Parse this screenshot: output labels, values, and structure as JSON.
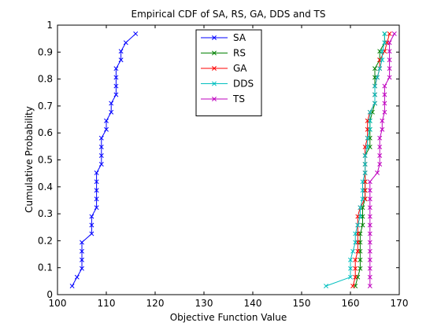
{
  "chart_data": {
    "type": "line",
    "title": "Empirical CDF of SA, RS, GA, DDS and TS",
    "xlabel": "Objective Function Value",
    "ylabel": "Cumulative Probability",
    "xlim": [
      100,
      170
    ],
    "ylim": [
      0,
      1
    ],
    "xticks": [
      "100",
      "110",
      "120",
      "130",
      "140",
      "150",
      "160",
      "170"
    ],
    "yticks": [
      "0",
      "0.1",
      "0.2",
      "0.3",
      "0.4",
      "0.5",
      "0.6",
      "0.7",
      "0.8",
      "0.9",
      "1"
    ],
    "grid": false,
    "legend_position": "top-center",
    "series": [
      {
        "name": "SA",
        "color": "#0000ff",
        "marker": "x",
        "points": [
          [
            103.0,
            0.032
          ],
          [
            104.0,
            0.065
          ],
          [
            105.0,
            0.097
          ],
          [
            105.0,
            0.129
          ],
          [
            105.0,
            0.161
          ],
          [
            105.0,
            0.194
          ],
          [
            107.0,
            0.226
          ],
          [
            107.0,
            0.258
          ],
          [
            107.0,
            0.29
          ],
          [
            108.0,
            0.323
          ],
          [
            108.0,
            0.355
          ],
          [
            108.0,
            0.387
          ],
          [
            108.0,
            0.419
          ],
          [
            108.0,
            0.452
          ],
          [
            109.0,
            0.484
          ],
          [
            109.0,
            0.516
          ],
          [
            109.0,
            0.548
          ],
          [
            109.0,
            0.581
          ],
          [
            110.0,
            0.613
          ],
          [
            110.0,
            0.645
          ],
          [
            111.0,
            0.677
          ],
          [
            111.0,
            0.71
          ],
          [
            112.0,
            0.742
          ],
          [
            112.0,
            0.774
          ],
          [
            112.0,
            0.806
          ],
          [
            112.0,
            0.839
          ],
          [
            113.0,
            0.871
          ],
          [
            113.0,
            0.903
          ],
          [
            114.0,
            0.935
          ],
          [
            116.0,
            0.968
          ]
        ]
      },
      {
        "name": "RS",
        "color": "#008000",
        "marker": "x",
        "points": [
          [
            161.0,
            0.032
          ],
          [
            161.5,
            0.065
          ],
          [
            162.0,
            0.097
          ],
          [
            162.0,
            0.129
          ],
          [
            162.0,
            0.161
          ],
          [
            162.0,
            0.194
          ],
          [
            162.0,
            0.226
          ],
          [
            162.5,
            0.258
          ],
          [
            162.5,
            0.29
          ],
          [
            162.5,
            0.323
          ],
          [
            163.0,
            0.355
          ],
          [
            163.0,
            0.387
          ],
          [
            163.0,
            0.419
          ],
          [
            163.0,
            0.452
          ],
          [
            163.0,
            0.484
          ],
          [
            163.0,
            0.516
          ],
          [
            164.0,
            0.548
          ],
          [
            164.0,
            0.581
          ],
          [
            164.0,
            0.613
          ],
          [
            164.0,
            0.645
          ],
          [
            164.5,
            0.677
          ],
          [
            165.0,
            0.71
          ],
          [
            165.0,
            0.742
          ],
          [
            165.0,
            0.774
          ],
          [
            165.0,
            0.806
          ],
          [
            165.0,
            0.839
          ],
          [
            166.0,
            0.871
          ],
          [
            166.0,
            0.903
          ],
          [
            167.0,
            0.935
          ],
          [
            167.0,
            0.968
          ]
        ]
      },
      {
        "name": "GA",
        "color": "#ff0000",
        "marker": "x",
        "points": [
          [
            160.5,
            0.032
          ],
          [
            161.0,
            0.065
          ],
          [
            161.0,
            0.097
          ],
          [
            161.0,
            0.129
          ],
          [
            161.5,
            0.161
          ],
          [
            161.5,
            0.194
          ],
          [
            161.5,
            0.226
          ],
          [
            161.5,
            0.258
          ],
          [
            161.5,
            0.29
          ],
          [
            162.0,
            0.323
          ],
          [
            163.0,
            0.355
          ],
          [
            163.0,
            0.387
          ],
          [
            163.0,
            0.419
          ],
          [
            163.0,
            0.452
          ],
          [
            163.0,
            0.484
          ],
          [
            163.0,
            0.516
          ],
          [
            163.0,
            0.548
          ],
          [
            163.5,
            0.581
          ],
          [
            163.5,
            0.613
          ],
          [
            163.5,
            0.645
          ],
          [
            164.0,
            0.677
          ],
          [
            165.0,
            0.71
          ],
          [
            165.0,
            0.742
          ],
          [
            165.0,
            0.774
          ],
          [
            165.5,
            0.806
          ],
          [
            166.0,
            0.839
          ],
          [
            166.0,
            0.871
          ],
          [
            167.0,
            0.903
          ],
          [
            167.5,
            0.935
          ],
          [
            168.0,
            0.968
          ]
        ]
      },
      {
        "name": "DDS",
        "color": "#00bfbf",
        "marker": "x",
        "points": [
          [
            155.0,
            0.032
          ],
          [
            160.0,
            0.065
          ],
          [
            160.0,
            0.097
          ],
          [
            160.0,
            0.129
          ],
          [
            160.5,
            0.161
          ],
          [
            161.0,
            0.194
          ],
          [
            161.0,
            0.226
          ],
          [
            161.5,
            0.258
          ],
          [
            162.0,
            0.29
          ],
          [
            162.0,
            0.323
          ],
          [
            162.5,
            0.355
          ],
          [
            162.5,
            0.387
          ],
          [
            162.5,
            0.419
          ],
          [
            163.0,
            0.452
          ],
          [
            163.0,
            0.484
          ],
          [
            163.0,
            0.516
          ],
          [
            163.5,
            0.548
          ],
          [
            163.5,
            0.581
          ],
          [
            164.0,
            0.613
          ],
          [
            164.0,
            0.645
          ],
          [
            164.0,
            0.677
          ],
          [
            165.0,
            0.71
          ],
          [
            165.0,
            0.742
          ],
          [
            165.0,
            0.774
          ],
          [
            165.5,
            0.806
          ],
          [
            166.0,
            0.839
          ],
          [
            166.5,
            0.871
          ],
          [
            166.5,
            0.903
          ],
          [
            167.0,
            0.935
          ],
          [
            167.0,
            0.968
          ]
        ]
      },
      {
        "name": "TS",
        "color": "#bf00bf",
        "marker": "x",
        "points": [
          [
            164.0,
            0.032
          ],
          [
            164.0,
            0.065
          ],
          [
            164.0,
            0.097
          ],
          [
            164.0,
            0.129
          ],
          [
            164.0,
            0.161
          ],
          [
            164.0,
            0.194
          ],
          [
            164.0,
            0.226
          ],
          [
            164.0,
            0.258
          ],
          [
            164.0,
            0.29
          ],
          [
            164.0,
            0.323
          ],
          [
            164.0,
            0.355
          ],
          [
            164.0,
            0.387
          ],
          [
            164.0,
            0.419
          ],
          [
            165.5,
            0.452
          ],
          [
            166.0,
            0.484
          ],
          [
            166.0,
            0.516
          ],
          [
            166.0,
            0.548
          ],
          [
            166.0,
            0.581
          ],
          [
            166.5,
            0.613
          ],
          [
            166.5,
            0.645
          ],
          [
            167.0,
            0.677
          ],
          [
            167.0,
            0.71
          ],
          [
            167.0,
            0.742
          ],
          [
            167.0,
            0.774
          ],
          [
            168.0,
            0.806
          ],
          [
            168.0,
            0.839
          ],
          [
            168.0,
            0.871
          ],
          [
            168.0,
            0.903
          ],
          [
            168.0,
            0.935
          ],
          [
            169.0,
            0.968
          ]
        ]
      }
    ]
  }
}
